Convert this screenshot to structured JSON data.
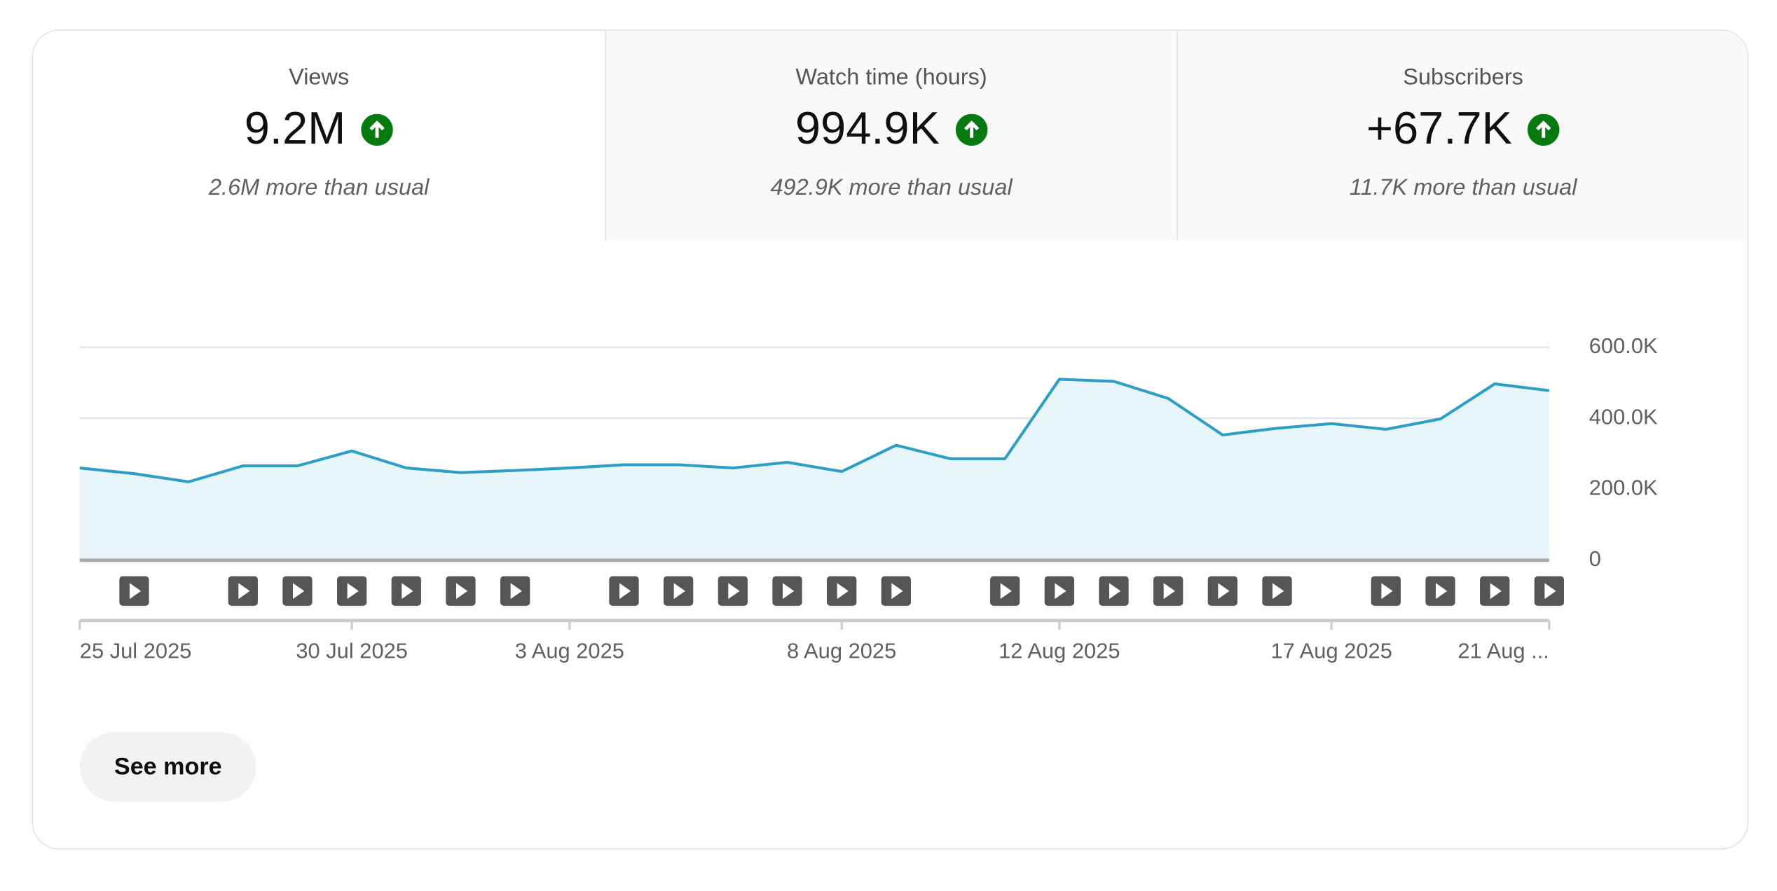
{
  "tabs": [
    {
      "label": "Views",
      "value": "9.2M",
      "note": "2.6M more than usual"
    },
    {
      "label": "Watch time (hours)",
      "value": "994.9K",
      "note": "492.9K more than usual"
    },
    {
      "label": "Subscribers",
      "value": "+67.7K",
      "note": "11.7K more than usual"
    }
  ],
  "chart_data": {
    "type": "line",
    "categories": [
      "25 Jul 2025",
      null,
      null,
      null,
      null,
      "30 Jul 2025",
      null,
      null,
      null,
      "3 Aug 2025",
      null,
      null,
      null,
      null,
      "8 Aug 2025",
      null,
      null,
      null,
      "12 Aug 2025",
      null,
      null,
      null,
      null,
      "17 Aug 2025",
      null,
      null,
      null,
      "21 Aug ..."
    ],
    "series": [
      {
        "color": "#2d9fc6",
        "fill": "#e8f5fa",
        "values": [
          260000,
          244000,
          221000,
          266000,
          266000,
          308000,
          260000,
          247000,
          253000,
          260000,
          269000,
          269000,
          260000,
          276000,
          250000,
          324000,
          286000,
          286000,
          510000,
          504000,
          456000,
          353000,
          372000,
          385000,
          369000,
          398000,
          497000,
          478000
        ]
      }
    ],
    "ylim": [
      0,
      600000
    ],
    "yticks": [
      0,
      {
        "value": 200000,
        "label": "200.0K"
      },
      {
        "value": 400000,
        "label": "400.0K"
      },
      {
        "value": 600000,
        "label": "600.0K"
      }
    ],
    "grid": true
  },
  "button": "See more"
}
